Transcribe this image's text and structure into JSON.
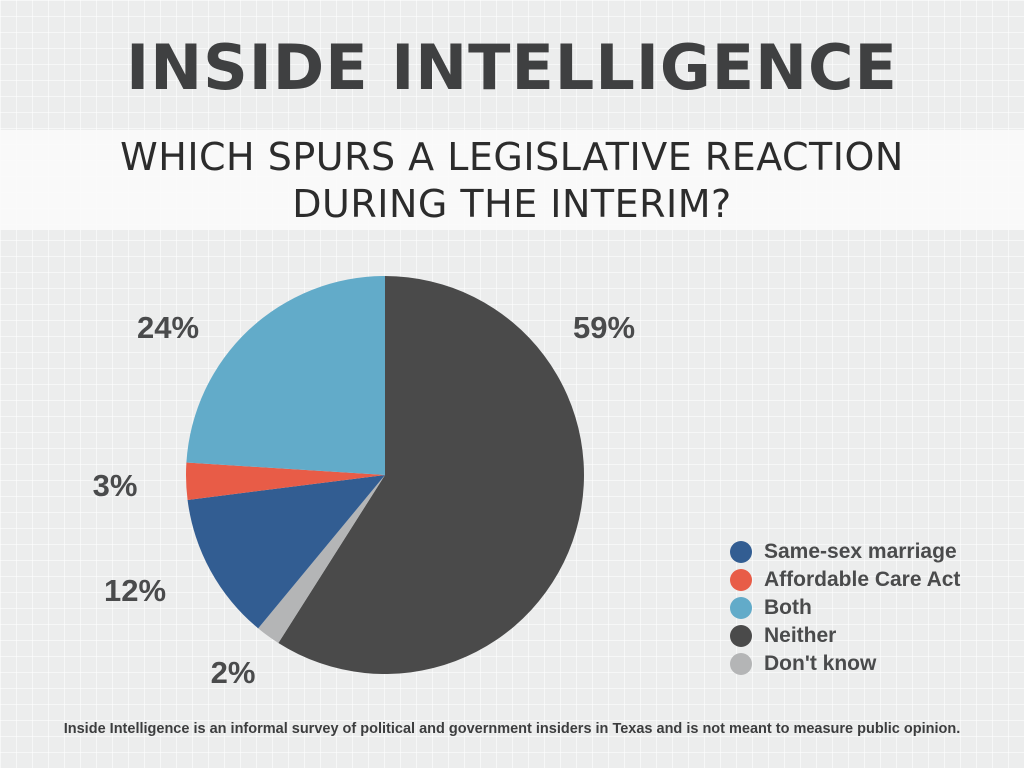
{
  "header": {
    "title": "INSIDE INTELLIGENCE"
  },
  "question": {
    "line1": "WHICH SPURS A LEGISLATIVE REACTION",
    "line2": "DURING THE INTERIM?"
  },
  "colors": {
    "same_sex_marriage": "#325d92",
    "affordable_care_act": "#e85c47",
    "both": "#62abc9",
    "neither": "#4a4a4a",
    "dont_know": "#b4b5b6"
  },
  "chart_data": {
    "type": "pie",
    "start": "12 o'clock",
    "direction": "clockwise",
    "slices": [
      {
        "label": "Neither",
        "value": 59,
        "display": "59%",
        "color": "#4a4a4a"
      },
      {
        "label": "Don't know",
        "value": 2,
        "display": "2%",
        "color": "#b4b5b6"
      },
      {
        "label": "Same-sex marriage",
        "value": 12,
        "display": "12%",
        "color": "#325d92"
      },
      {
        "label": "Affordable Care Act",
        "value": 3,
        "display": "3%",
        "color": "#e85c47"
      },
      {
        "label": "Both",
        "value": 24,
        "display": "24%",
        "color": "#62abc9"
      }
    ],
    "legend": [
      {
        "label": "Same-sex marriage",
        "color": "#325d92"
      },
      {
        "label": "Affordable Care Act",
        "color": "#e85c47"
      },
      {
        "label": "Both",
        "color": "#62abc9"
      },
      {
        "label": "Neither",
        "color": "#4a4a4a"
      },
      {
        "label": "Don't know",
        "color": "#b4b5b6"
      }
    ],
    "legend_position": "bottom-right"
  },
  "footnote": "Inside Intelligence is an informal survey of political and government insiders in Texas and is not meant to measure public opinion."
}
